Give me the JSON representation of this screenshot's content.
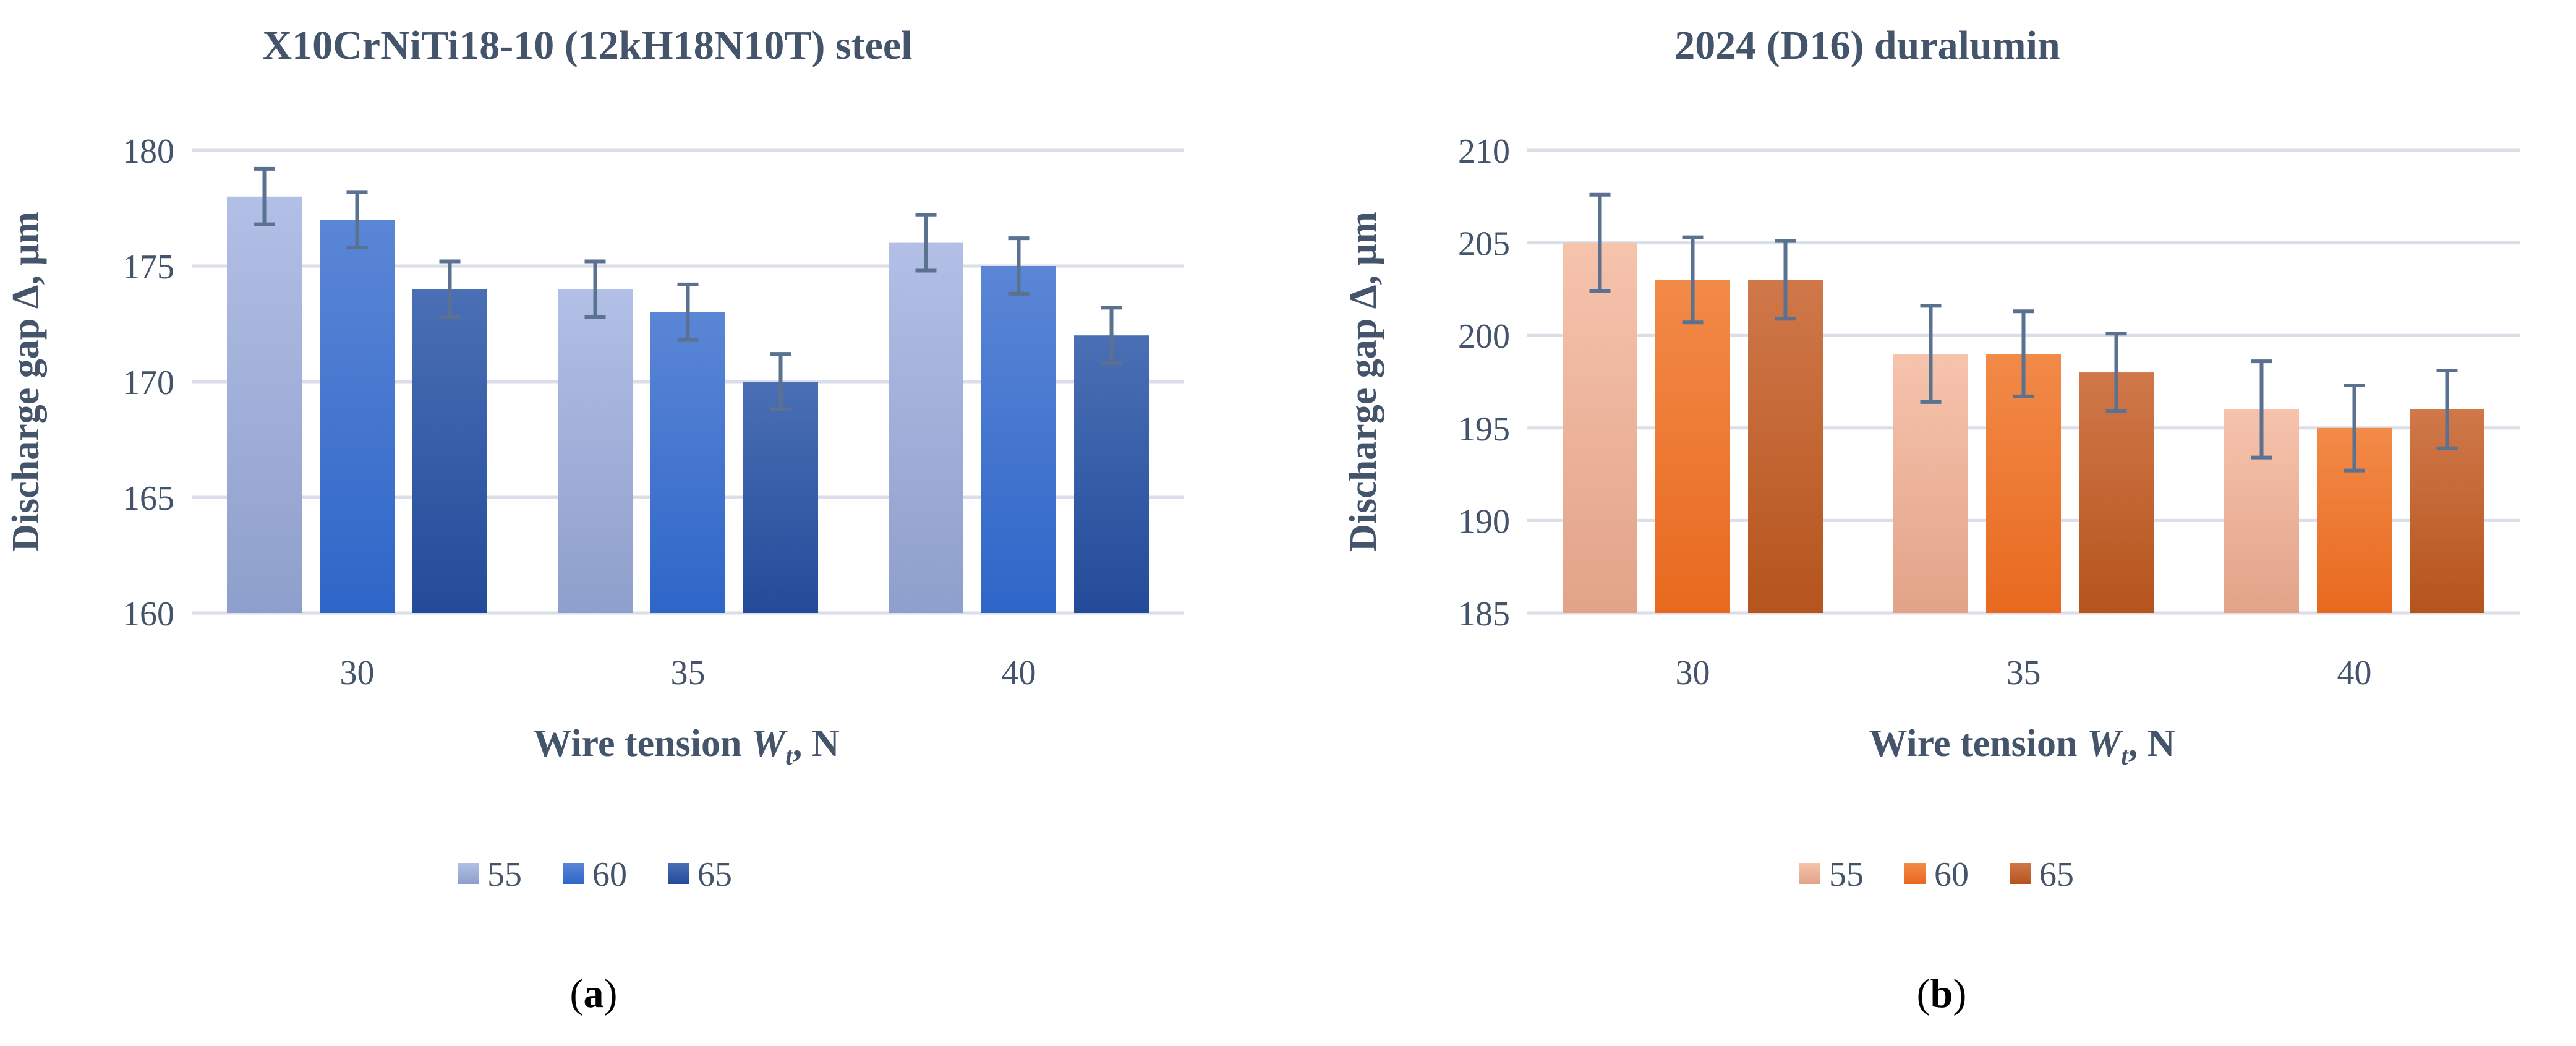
{
  "chart_data": [
    {
      "type": "bar",
      "panel_label": "(a)",
      "title": "X10CrNiTi18-10 (12kH18N10T) steel",
      "xlabel": "Wire tension Wₜ, N",
      "xlabel_parts": {
        "before": "Wire tension ",
        "italic": "W",
        "subscript": "t",
        "after": ", N"
      },
      "ylabel": "Discharge gap Δ, µm",
      "ylim": [
        160,
        180
      ],
      "yticks": [
        160,
        165,
        170,
        175,
        180
      ],
      "categories": [
        "30",
        "35",
        "40"
      ],
      "grid": true,
      "legend_position": "bottom",
      "series": [
        {
          "name": "55",
          "values": [
            178,
            174,
            176
          ],
          "errors": [
            1.2,
            1.2,
            1.2
          ],
          "color_top": "#b2bfe6",
          "color_bottom": "#8e9fcb"
        },
        {
          "name": "60",
          "values": [
            177,
            173,
            175
          ],
          "errors": [
            1.2,
            1.2,
            1.2
          ],
          "color_top": "#5b86d6",
          "color_bottom": "#2e66c8"
        },
        {
          "name": "65",
          "values": [
            174,
            170,
            172
          ],
          "errors": [
            1.2,
            1.2,
            1.2
          ],
          "color_top": "#4a6fb5",
          "color_bottom": "#234b99"
        }
      ]
    },
    {
      "type": "bar",
      "panel_label": "(b)",
      "title": "2024 (D16) duralumin",
      "xlabel": "Wire tension Wₜ, N",
      "xlabel_parts": {
        "before": "Wire tension ",
        "italic": "W",
        "subscript": "t",
        "after": ", N"
      },
      "ylabel": "Discharge gap Δ, µm",
      "ylim": [
        185,
        210
      ],
      "yticks": [
        185,
        190,
        195,
        200,
        205,
        210
      ],
      "categories": [
        "30",
        "35",
        "40"
      ],
      "grid": true,
      "legend_position": "bottom",
      "series": [
        {
          "name": "55",
          "values": [
            205,
            199,
            196
          ],
          "errors": [
            2.6,
            2.6,
            2.6
          ],
          "color_top": "#f6c3ad",
          "color_bottom": "#e2a388"
        },
        {
          "name": "60",
          "values": [
            203,
            199,
            195
          ],
          "errors": [
            2.3,
            2.3,
            2.3
          ],
          "color_top": "#f28a48",
          "color_bottom": "#e8691f"
        },
        {
          "name": "65",
          "values": [
            203,
            198,
            196
          ],
          "errors": [
            2.1,
            2.1,
            2.1
          ],
          "color_top": "#d0784a",
          "color_bottom": "#b5541c"
        }
      ]
    }
  ],
  "style": {
    "text_color": "#44546a",
    "grid_color": "#d9dee8",
    "errorbar_color": "#5a7190"
  }
}
